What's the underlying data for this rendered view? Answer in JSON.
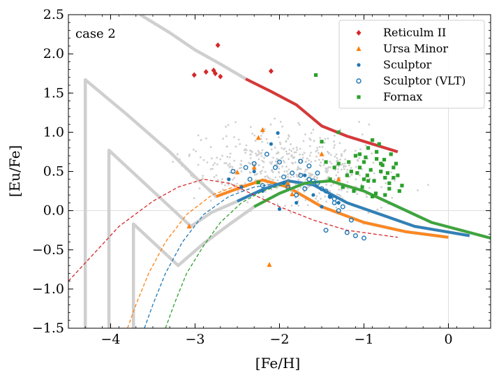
{
  "chart_data": {
    "type": "scatter",
    "title": "",
    "xlabel": "[Fe/H]",
    "ylabel": "[Eu/Fe]",
    "xlim": [
      -4.5,
      0.5
    ],
    "ylim": [
      -1.5,
      2.5
    ],
    "xticks": [
      -4,
      -3,
      -2,
      -1,
      0
    ],
    "xtick_labels": [
      "−4",
      "−3",
      "−2",
      "−1",
      "0"
    ],
    "yticks": [
      -1.5,
      -1.0,
      -0.5,
      0.0,
      0.5,
      1.0,
      1.5,
      2.0,
      2.5
    ],
    "ytick_labels": [
      "−1.5",
      "−1.0",
      "−0.5",
      "0.0",
      "0.5",
      "1.0",
      "1.5",
      "2.0",
      "2.5"
    ],
    "grid": false,
    "reference_lines": {
      "y": 0.0,
      "x": 0.0,
      "color": "#dddddd"
    },
    "panel_label": "case 2",
    "legend": {
      "location": "top-right",
      "entries": [
        {
          "label": "Reticulm II",
          "marker": "diamond",
          "color": "#d62728"
        },
        {
          "label": "Ursa Minor",
          "marker": "triangle",
          "color": "#ff7f0e"
        },
        {
          "label": "Sculptor",
          "marker": "dot",
          "color": "#1f77b4"
        },
        {
          "label": "Sculptor (VLT)",
          "marker": "open-circle",
          "color": "#1f77b4"
        },
        {
          "label": "Fornax",
          "marker": "square",
          "color": "#2ca02c"
        }
      ]
    },
    "series": [
      {
        "name": "Reticulm II",
        "color": "#d62728",
        "marker": "diamond",
        "x": [
          -3.01,
          -2.87,
          -2.78,
          -2.76,
          -2.73,
          -2.7,
          -2.1
        ],
        "y": [
          1.73,
          1.77,
          1.79,
          1.75,
          2.11,
          1.71,
          1.78
        ]
      },
      {
        "name": "Ursa Minor",
        "color": "#ff7f0e",
        "marker": "triangle",
        "x": [
          -2.2,
          -2.25,
          -2.5,
          -1.85,
          -1.5,
          -1.3,
          -3.07,
          -2.12,
          -2.3,
          -1.9
        ],
        "y": [
          1.03,
          0.93,
          0.49,
          0.21,
          0.72,
          0.4,
          -0.2,
          -0.69,
          0.55,
          0.35
        ]
      },
      {
        "name": "Sculptor",
        "color": "#1f77b4",
        "marker": "dot",
        "x": [
          -2.02,
          -2.1,
          -1.95,
          -2.3,
          -2.45,
          -1.7,
          -1.6,
          -1.3,
          -2.0,
          -2.2,
          -1.8,
          -1.5,
          -1.4,
          -2.6
        ],
        "y": [
          0.99,
          0.85,
          0.35,
          0.5,
          0.3,
          0.45,
          0.2,
          0.1,
          0.02,
          0.25,
          0.1,
          0.05,
          0.18,
          0.4
        ],
        "x_positions_note": ""
      },
      {
        "name": "Sculptor (VLT)",
        "color": "#1f77b4",
        "marker": "open-circle",
        "x": [
          -2.15,
          -2.05,
          -1.95,
          -1.85,
          -1.75,
          -1.65,
          -1.55,
          -1.45,
          -1.35,
          -1.25,
          -1.15,
          -2.3,
          -2.4,
          -2.2,
          -1.9,
          -1.8,
          -1.7,
          -1.6,
          -1.5,
          -1.4,
          -1.3,
          -1.2,
          -2.0,
          -1.1,
          -1.0,
          -1.45,
          -1.35,
          -1.55,
          -1.65,
          -1.75,
          -2.55,
          -2.35
        ],
        "y": [
          0.72,
          0.55,
          0.43,
          0.48,
          0.45,
          0.4,
          0.35,
          0.25,
          0.15,
          0.05,
          -0.12,
          0.6,
          0.55,
          0.32,
          0.3,
          0.2,
          0.28,
          0.38,
          0.28,
          0.18,
          0.0,
          -0.28,
          0.62,
          -0.32,
          -0.35,
          -0.25,
          0.1,
          0.48,
          0.57,
          0.63,
          0.5,
          0.4
        ]
      },
      {
        "name": "Fornax",
        "color": "#2ca02c",
        "marker": "square",
        "x": [
          -1.5,
          -1.45,
          -1.3,
          -1.2,
          -1.15,
          -1.1,
          -1.05,
          -1.0,
          -0.95,
          -0.9,
          -0.85,
          -0.8,
          -0.75,
          -0.7,
          -0.65,
          -1.25,
          -1.18,
          -1.08,
          -0.98,
          -0.92,
          -0.88,
          -0.82,
          -0.78,
          -0.72,
          -1.12,
          -1.02,
          -0.96,
          -0.86,
          -0.76,
          -0.68,
          -0.6,
          -0.55,
          -1.35,
          -1.4,
          -0.62,
          -0.58,
          -0.9,
          -1.0,
          -0.8,
          -0.7,
          -0.95,
          -0.85,
          -1.05,
          -0.75,
          -0.65,
          -2.25,
          -1.57,
          -1.3
        ],
        "y": [
          0.88,
          0.62,
          0.6,
          0.45,
          0.5,
          0.7,
          0.55,
          0.4,
          0.8,
          0.9,
          0.75,
          0.6,
          0.42,
          0.35,
          0.55,
          0.3,
          0.62,
          0.48,
          0.68,
          0.52,
          0.38,
          0.85,
          0.58,
          0.48,
          0.25,
          0.3,
          0.45,
          0.22,
          0.65,
          0.72,
          0.45,
          0.32,
          0.55,
          0.4,
          0.6,
          0.25,
          0.18,
          0.62,
          0.5,
          0.28,
          0.38,
          0.66,
          0.72,
          0.2,
          0.42,
          0.36,
          1.73,
          1.0
        ]
      },
      {
        "name": "",
        "color": "#c8c8c8",
        "marker": "small-dot",
        "description": "",
        "x": [],
        "y": []
      }
    ],
    "model_tracks": [
      {
        "color": "#d62728",
        "style": "solid",
        "x": [
          -3.65,
          -3.3,
          -3.0,
          -2.7,
          -2.4,
          -2.1,
          -1.8,
          -1.5,
          -1.2,
          -0.9,
          -0.6
        ],
        "y": [
          2.5,
          2.27,
          2.05,
          1.87,
          1.68,
          1.52,
          1.35,
          1.08,
          0.95,
          0.85,
          0.75
        ]
      },
      {
        "color": "#ff7f0e",
        "style": "solid",
        "x": [
          -4.3,
          -4.3,
          -3.8,
          -3.3,
          -3.0,
          -2.75,
          -2.5,
          -2.2,
          -1.9,
          -1.5,
          -1.0,
          -0.5,
          0.0
        ],
        "y": [
          -1.5,
          1.67,
          1.22,
          0.75,
          0.43,
          0.18,
          0.28,
          0.39,
          0.3,
          0.05,
          -0.15,
          -0.27,
          -0.34
        ]
      },
      {
        "color": "#1f77b4",
        "style": "solid",
        "x": [
          -4.02,
          -4.02,
          -3.6,
          -3.3,
          -3.05,
          -2.8,
          -2.5,
          -2.2,
          -1.9,
          -1.6,
          -1.2,
          -0.8,
          -0.4,
          0.25
        ],
        "y": [
          -1.5,
          0.77,
          0.35,
          0.05,
          -0.2,
          -0.02,
          0.12,
          0.27,
          0.38,
          0.33,
          0.1,
          -0.05,
          -0.2,
          -0.32
        ]
      },
      {
        "color": "#2ca02c",
        "style": "solid",
        "x": [
          -3.73,
          -3.73,
          -3.45,
          -3.2,
          -2.9,
          -2.6,
          -2.3,
          -2.0,
          -1.7,
          -1.4,
          -1.0,
          -0.6,
          -0.2,
          0.5
        ],
        "y": [
          -1.5,
          -0.17,
          -0.45,
          -0.7,
          -0.42,
          -0.18,
          0.05,
          0.22,
          0.35,
          0.38,
          0.25,
          0.05,
          -0.15,
          -0.35
        ]
      },
      {
        "color": "#d62728",
        "style": "dashed",
        "x": [
          -4.5,
          -4.2,
          -3.9,
          -3.5,
          -3.2,
          -2.9,
          -2.6,
          -2.3,
          -2.0,
          -1.6,
          -1.2,
          -0.6
        ],
        "y": [
          -0.9,
          -0.55,
          -0.2,
          0.12,
          0.3,
          0.4,
          0.35,
          0.2,
          0.05,
          -0.12,
          -0.25,
          -0.34
        ]
      },
      {
        "color": "#ff7f0e",
        "style": "dashed",
        "x": [
          -3.8,
          -3.7,
          -3.55,
          -3.35,
          -3.1,
          -2.8,
          -2.5,
          -2.2
        ],
        "y": [
          -1.5,
          -1.2,
          -0.8,
          -0.4,
          -0.05,
          0.2,
          0.32,
          0.35
        ]
      },
      {
        "color": "#1f77b4",
        "style": "dashed",
        "x": [
          -3.6,
          -3.5,
          -3.35,
          -3.15,
          -2.9,
          -2.6,
          -2.3,
          -2.0
        ],
        "y": [
          -1.5,
          -1.2,
          -0.8,
          -0.4,
          -0.05,
          0.18,
          0.3,
          0.35
        ]
      },
      {
        "color": "#2ca02c",
        "style": "dashed",
        "x": [
          -3.35,
          -3.25,
          -3.1,
          -2.9,
          -2.7,
          -2.45,
          -2.2,
          -1.9
        ],
        "y": [
          -1.5,
          -1.2,
          -0.8,
          -0.45,
          -0.15,
          0.1,
          0.25,
          0.35
        ]
      }
    ]
  }
}
